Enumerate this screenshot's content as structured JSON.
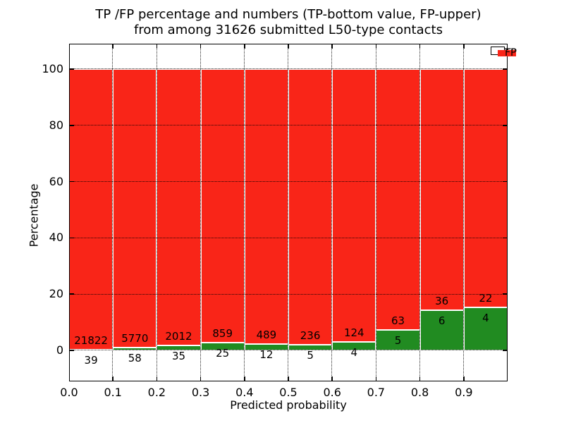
{
  "figure": {
    "title_line1": "TP /FP percentage and numbers (TP-bottom value, FP-upper)",
    "title_line2": "from among 31626 submitted L50-type contacts",
    "xlabel": "Predicted probability",
    "ylabel": "Percentage"
  },
  "legend": {
    "position": "upper right",
    "items": [
      {
        "label": "TP",
        "color": "#218b21"
      },
      {
        "label": "FP",
        "color": "#f92518"
      }
    ]
  },
  "chart_data": {
    "type": "bar",
    "subtype": "stacked-percentage-histogram",
    "title": "TP /FP percentage and numbers (TP-bottom value, FP-upper) from among 31626 submitted L50-type contacts",
    "xlabel": "Predicted probability",
    "ylabel": "Percentage",
    "xlim": [
      0.0,
      1.0
    ],
    "ylim": [
      -11,
      109
    ],
    "grid": "dotted",
    "legend_position": "upper right",
    "bin_width": 0.1,
    "bin_starts": [
      0.0,
      0.1,
      0.2,
      0.3,
      0.4,
      0.5,
      0.6,
      0.7,
      0.8,
      0.9
    ],
    "xtick_labels": [
      "0.0",
      "0.1",
      "0.2",
      "0.3",
      "0.4",
      "0.5",
      "0.6",
      "0.7",
      "0.8",
      "0.9"
    ],
    "ytick_values": [
      0,
      20,
      40,
      60,
      80,
      100
    ],
    "series": [
      {
        "name": "TP",
        "color": "#218b21",
        "counts": [
          39,
          58,
          35,
          25,
          12,
          5,
          4,
          5,
          6,
          4
        ]
      },
      {
        "name": "FP",
        "color": "#f92518",
        "counts": [
          21822,
          5770,
          2012,
          859,
          489,
          236,
          124,
          63,
          36,
          22
        ]
      }
    ],
    "bar_edge_color": "#ffffff",
    "total_submitted_contacts": 31626
  }
}
